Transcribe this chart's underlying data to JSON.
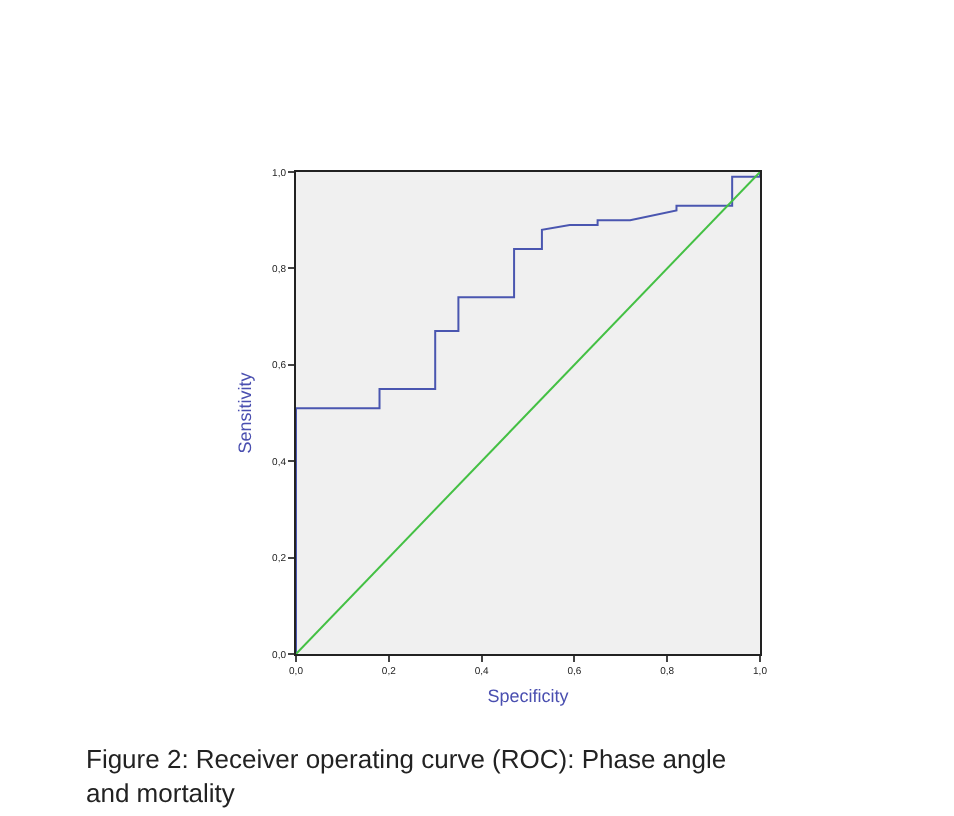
{
  "chart_data": {
    "type": "line",
    "xlabel": "Specificity",
    "ylabel": "Sensitivity",
    "annotations": [
      "Figure 2: Receiver operating curve (ROC): Phase angle and mortality"
    ],
    "series": [
      {
        "color": "#4a56b0",
        "x": [
          0,
          0,
          0.18,
          0.18,
          0.3,
          0.3,
          0.35,
          0.35,
          0.47,
          0.47,
          0.53,
          0.53,
          0.59,
          0.65,
          0.65,
          0.72,
          0.82,
          0.82,
          0.94,
          0.94,
          1.0,
          1.0
        ],
        "values": [
          0,
          0.51,
          0.51,
          0.55,
          0.55,
          0.67,
          0.67,
          0.74,
          0.74,
          0.84,
          0.84,
          0.88,
          0.89,
          0.89,
          0.9,
          0.9,
          0.92,
          0.93,
          0.93,
          0.99,
          0.99,
          1.0
        ]
      },
      {
        "color": "#44c044",
        "x": [
          0,
          1
        ],
        "values": [
          0,
          1
        ]
      }
    ],
    "xlim": [
      0,
      1
    ],
    "ylim": [
      0,
      1
    ],
    "xticks": [
      {
        "value": 0,
        "label": "0,0"
      },
      {
        "value": 0.2,
        "label": "0,2"
      },
      {
        "value": 0.4,
        "label": "0,4"
      },
      {
        "value": 0.6,
        "label": "0,6"
      },
      {
        "value": 0.8,
        "label": "0,8"
      },
      {
        "value": 1,
        "label": "1,0"
      }
    ],
    "yticks": [
      {
        "value": 0,
        "label": "0,0"
      },
      {
        "value": 0.2,
        "label": "0,2"
      },
      {
        "value": 0.4,
        "label": "0,4"
      },
      {
        "value": 0.6,
        "label": "0,6"
      },
      {
        "value": 0.8,
        "label": "0,8"
      },
      {
        "value": 1,
        "label": "1,0"
      }
    ],
    "marker": "none",
    "line_style": "solid"
  }
}
